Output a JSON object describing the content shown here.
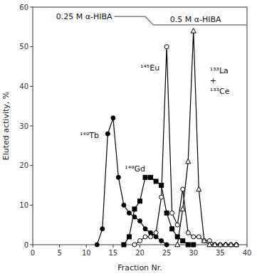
{
  "chart_data": {
    "type": "line",
    "xlabel": "Fraction Nr.",
    "ylabel": "Eluted activity, %",
    "xlim": [
      0,
      40
    ],
    "ylim": [
      0,
      60
    ],
    "xticks": [
      0,
      5,
      10,
      15,
      20,
      25,
      30,
      35,
      40
    ],
    "yticks": [
      0,
      10,
      20,
      30,
      40,
      50,
      60
    ],
    "grid": false,
    "series": [
      {
        "color": "#000000",
        "marker": "circle",
        "x": [
          12,
          13,
          14,
          15,
          16,
          17,
          18,
          19,
          20,
          21,
          22,
          23,
          24,
          25
        ],
        "values": [
          0,
          4,
          28,
          32,
          17,
          10,
          8,
          7,
          6,
          4,
          3,
          2,
          1,
          0
        ]
      },
      {
        "color": "#000000",
        "marker": "square",
        "x": [
          17,
          18,
          19,
          20,
          21,
          22,
          23,
          24,
          25,
          26,
          27,
          28,
          29,
          30
        ],
        "values": [
          0,
          2,
          9,
          11,
          17,
          17,
          16,
          15,
          8,
          4,
          2,
          1,
          0,
          0
        ]
      },
      {
        "color": "#000000",
        "marker": "open-circle",
        "x": [
          19,
          20,
          21,
          22,
          23,
          24,
          25,
          26,
          27,
          28,
          29,
          30,
          31,
          32,
          33,
          34,
          35,
          36,
          37,
          38
        ],
        "values": [
          0,
          1,
          2,
          2,
          3,
          12,
          50,
          8,
          5,
          14,
          3,
          2,
          2,
          1,
          1,
          0,
          0,
          0,
          0,
          0
        ]
      },
      {
        "color": "#000000",
        "marker": "open-triangle",
        "x": [
          27,
          28,
          29,
          30,
          31,
          32,
          33,
          34,
          35,
          36,
          37,
          38
        ],
        "values": [
          0,
          9,
          21,
          54,
          14,
          1,
          0,
          0,
          0,
          0,
          0,
          0
        ]
      }
    ],
    "annotations": [
      "¹⁴⁹Tb",
      "¹⁴⁹Gd",
      "¹⁴⁵Eu",
      "¹³³La\n+\n¹³³Ce",
      "0.25 M α-HIBA",
      "0.5 M α-HIBA"
    ]
  }
}
